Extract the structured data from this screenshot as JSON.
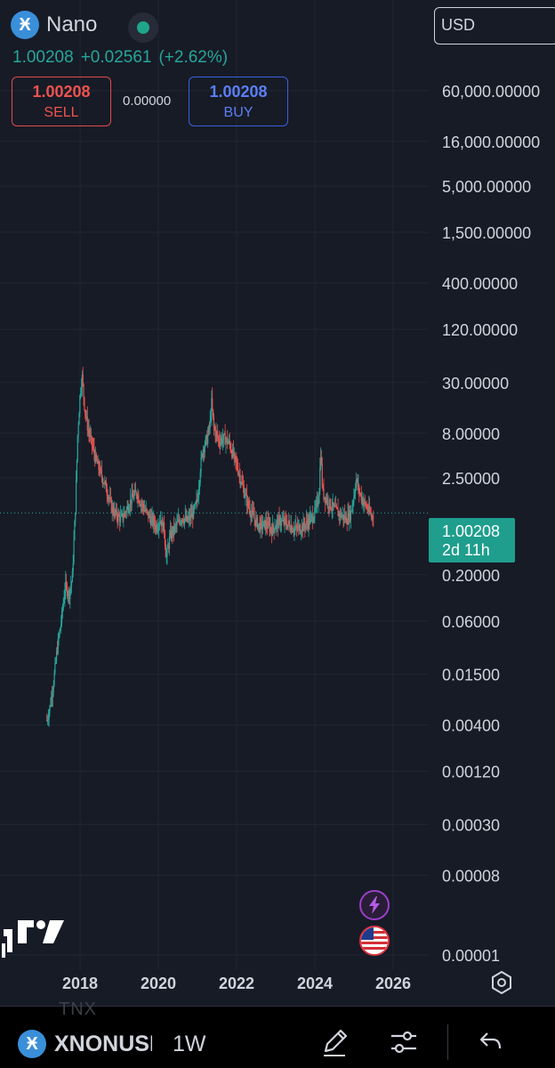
{
  "header": {
    "symbol_name": "Nano",
    "logo_glyph": "Ӿ",
    "last_price": "1.00208",
    "change": "+0.02561",
    "change_pct": "(+2.62%)"
  },
  "trade": {
    "sell_price": "1.00208",
    "sell_label": "SELL",
    "spread": "0.00000",
    "buy_price": "1.00208",
    "buy_label": "BUY"
  },
  "currency": {
    "value": "USD"
  },
  "price_tag": {
    "price": "1.00208",
    "countdown": "2d 11h"
  },
  "bottom_bar": {
    "ghost_text": "TNX",
    "symbol": "XNONUSD",
    "interval": "1W"
  },
  "colors": {
    "background": "#171b26",
    "up": "#26a69a",
    "down": "#ef5350",
    "grid": "#222633",
    "price_tag": "#1f9e8d"
  },
  "icons": {
    "status": "status-dot-icon",
    "bolt": "lightning-icon",
    "flag": "us-flag-icon",
    "settings": "gear-icon",
    "draw": "pencil-icon",
    "indicators": "sliders-icon",
    "undo": "undo-arrow-icon"
  },
  "chart_data": {
    "type": "candlestick",
    "y_scale": "log",
    "y_tick_labels": [
      "60,000.00000",
      "16,000.00000",
      "5,000.00000",
      "1,500.00000",
      "400.00000",
      "120.00000",
      "30.00000",
      "8.00000",
      "2.50000",
      "0.20000",
      "0.06000",
      "0.01500",
      "0.00400",
      "0.00120",
      "0.00030",
      "0.00008",
      "0.00001"
    ],
    "y_tick_values": [
      60000,
      16000,
      5000,
      1500,
      400,
      120,
      30,
      8,
      2.5,
      0.2,
      0.06,
      0.015,
      0.004,
      0.0012,
      0.0003,
      8e-05,
      1e-05
    ],
    "x_tick_labels": [
      "2018",
      "2020",
      "2022",
      "2024",
      "2026"
    ],
    "x_tick_values": [
      2018,
      2020,
      2022,
      2024,
      2026
    ],
    "last_price": 1.00208,
    "path": [
      [
        2017.15,
        0.0045
      ],
      [
        2017.22,
        0.006
      ],
      [
        2017.32,
        0.012
      ],
      [
        2017.42,
        0.03
      ],
      [
        2017.52,
        0.06
      ],
      [
        2017.62,
        0.15
      ],
      [
        2017.72,
        0.12
      ],
      [
        2017.8,
        0.18
      ],
      [
        2017.88,
        1.1
      ],
      [
        2017.94,
        8
      ],
      [
        2018.0,
        22
      ],
      [
        2018.05,
        36
      ],
      [
        2018.12,
        15
      ],
      [
        2018.2,
        9
      ],
      [
        2018.3,
        6
      ],
      [
        2018.4,
        4
      ],
      [
        2018.5,
        3
      ],
      [
        2018.62,
        2.2
      ],
      [
        2018.72,
        1.6
      ],
      [
        2018.82,
        1.1
      ],
      [
        2018.92,
        0.95
      ],
      [
        2019.05,
        0.85
      ],
      [
        2019.15,
        1.0
      ],
      [
        2019.3,
        1.4
      ],
      [
        2019.45,
        1.7
      ],
      [
        2019.55,
        1.3
      ],
      [
        2019.7,
        1.0
      ],
      [
        2019.85,
        0.8
      ],
      [
        2019.95,
        0.7
      ],
      [
        2020.05,
        0.85
      ],
      [
        2020.15,
        0.65
      ],
      [
        2020.2,
        0.3
      ],
      [
        2020.3,
        0.55
      ],
      [
        2020.45,
        0.7
      ],
      [
        2020.6,
        0.9
      ],
      [
        2020.75,
        0.8
      ],
      [
        2020.9,
        1.0
      ],
      [
        2021.0,
        1.4
      ],
      [
        2021.08,
        3.5
      ],
      [
        2021.15,
        5.5
      ],
      [
        2021.25,
        7
      ],
      [
        2021.32,
        10
      ],
      [
        2021.36,
        18
      ],
      [
        2021.42,
        9
      ],
      [
        2021.55,
        6.5
      ],
      [
        2021.7,
        7
      ],
      [
        2021.82,
        6
      ],
      [
        2021.95,
        4
      ],
      [
        2022.05,
        3
      ],
      [
        2022.15,
        2
      ],
      [
        2022.3,
        1.2
      ],
      [
        2022.45,
        0.85
      ],
      [
        2022.6,
        0.7
      ],
      [
        2022.75,
        0.75
      ],
      [
        2022.9,
        0.65
      ],
      [
        2023.1,
        0.8
      ],
      [
        2023.3,
        0.75
      ],
      [
        2023.5,
        0.65
      ],
      [
        2023.7,
        0.7
      ],
      [
        2023.85,
        0.8
      ],
      [
        2024.0,
        1.0
      ],
      [
        2024.1,
        1.5
      ],
      [
        2024.15,
        5
      ],
      [
        2024.2,
        1.7
      ],
      [
        2024.35,
        1.3
      ],
      [
        2024.5,
        1.1
      ],
      [
        2024.65,
        0.95
      ],
      [
        2024.8,
        0.85
      ],
      [
        2024.92,
        1.0
      ],
      [
        2025.0,
        1.6
      ],
      [
        2025.05,
        2.4
      ],
      [
        2025.12,
        1.8
      ],
      [
        2025.25,
        1.3
      ],
      [
        2025.35,
        1.1
      ],
      [
        2025.45,
        0.9
      ],
      [
        2025.5,
        1.0
      ]
    ]
  }
}
